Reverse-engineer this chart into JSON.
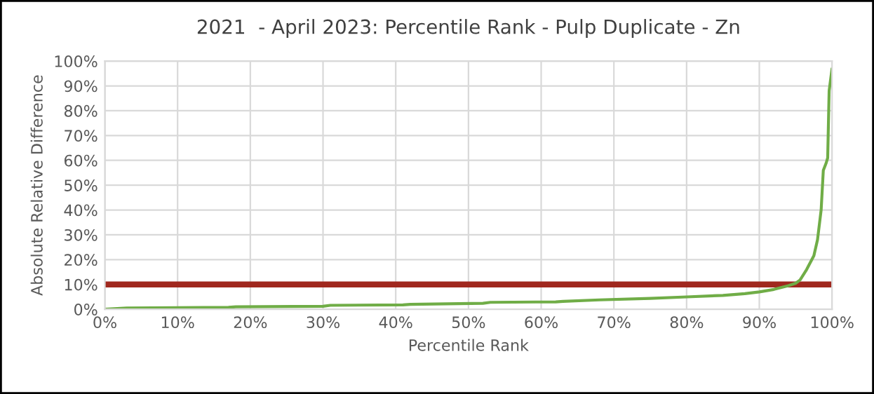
{
  "chart_data": {
    "type": "line",
    "title": "2021  - April 2023: Percentile Rank - Pulp Duplicate - Zn",
    "xlabel": "Percentile Rank",
    "ylabel": "Absolute Relative Difference",
    "series": [
      {
        "color": "#70ad47",
        "x": [
          0,
          3,
          17,
          18,
          30,
          31,
          41,
          42,
          52,
          53,
          62,
          63,
          68,
          75,
          80,
          85,
          88,
          90,
          92,
          94,
          95,
          95.6,
          96.5,
          97.5,
          98,
          98.5,
          98.8,
          99.2,
          99.4,
          99.6,
          100
        ],
        "values": [
          0,
          0.5,
          0.8,
          1,
          1.2,
          1.6,
          1.8,
          2,
          2.4,
          2.8,
          3,
          3.2,
          3.8,
          4.4,
          5,
          5.6,
          6.3,
          7,
          8,
          9.5,
          10.5,
          11.8,
          16,
          21.6,
          28,
          40,
          56,
          59,
          61,
          88,
          97
        ]
      }
    ],
    "ref_lines": [
      {
        "axis": "y",
        "value": 10,
        "color": "#a0281e"
      }
    ],
    "xlim": [
      0,
      100
    ],
    "ylim": [
      0,
      100
    ],
    "xticks": [
      {
        "value": 0,
        "label": "0%"
      },
      {
        "value": 10,
        "label": "10%"
      },
      {
        "value": 20,
        "label": "20%"
      },
      {
        "value": 30,
        "label": "30%"
      },
      {
        "value": 40,
        "label": "40%"
      },
      {
        "value": 50,
        "label": "50%"
      },
      {
        "value": 60,
        "label": "60%"
      },
      {
        "value": 70,
        "label": "70%"
      },
      {
        "value": 80,
        "label": "80%"
      },
      {
        "value": 90,
        "label": "90%"
      },
      {
        "value": 100,
        "label": "100%"
      }
    ],
    "yticks": [
      {
        "value": 0,
        "label": "0%"
      },
      {
        "value": 10,
        "label": "10%"
      },
      {
        "value": 20,
        "label": "20%"
      },
      {
        "value": 30,
        "label": "30%"
      },
      {
        "value": 40,
        "label": "40%"
      },
      {
        "value": 50,
        "label": "50%"
      },
      {
        "value": 60,
        "label": "60%"
      },
      {
        "value": 70,
        "label": "70%"
      },
      {
        "value": 80,
        "label": "80%"
      },
      {
        "value": 90,
        "label": "90%"
      },
      {
        "value": 100,
        "label": "100%"
      }
    ],
    "grid": true,
    "legend": false,
    "marker": "none",
    "line_style": "solid"
  }
}
